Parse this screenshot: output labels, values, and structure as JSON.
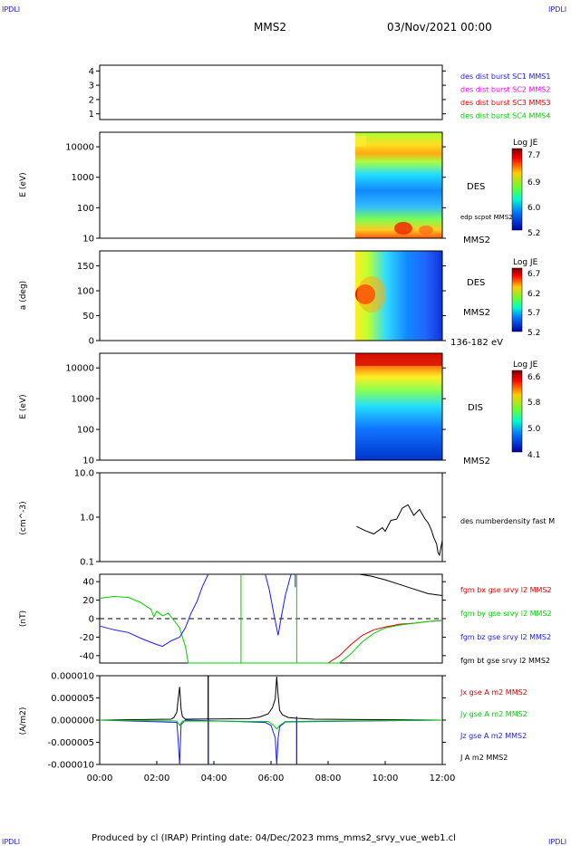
{
  "header": {
    "corner_tl": "IPDLI",
    "corner_tr": "IPDLI",
    "corner_bl": "IPDLI",
    "corner_br": "IPDLI",
    "spacecraft": "MMS2",
    "datetime": "03/Nov/2021 00:00"
  },
  "footer": {
    "text": "Produced by cl (IRAP)   Printing date: 04/Dec/2023   mms_mms2_srvy_vue_web1.cl"
  },
  "colors": {
    "blue": "#1a1aff",
    "magenta": "#ff00ff",
    "red": "#e00000",
    "green": "#00d000",
    "black": "#000000"
  },
  "chart_data": [
    {
      "type": "line",
      "id": "burst",
      "y_ticks": [
        "1",
        "2",
        "3",
        "4"
      ],
      "ylim": [
        0.6,
        4.4
      ],
      "legend": [
        {
          "text": "des dist burst SC1 MMS1",
          "color": "#1a1aff"
        },
        {
          "text": "des dist burst SC2 MMS2",
          "color": "#ff00ff"
        },
        {
          "text": "des dist burst SC3 MMS3",
          "color": "#e00000"
        },
        {
          "text": "des dist burst SC4 MMS4",
          "color": "#00d000"
        }
      ]
    },
    {
      "type": "heatmap",
      "id": "des-energy",
      "ylabel": "E (eV)",
      "y_log": true,
      "ylim": [
        10,
        30000
      ],
      "y_ticks": [
        "10",
        "100",
        "1000",
        "10000"
      ],
      "data_start_hour": 9.0,
      "colorbar": {
        "title": "Log JE",
        "ticks": [
          "7.7",
          "6.9",
          "6.0",
          "5.2"
        ]
      },
      "right_labels": [
        "DES",
        "edp scpot MMS2",
        "MMS2"
      ]
    },
    {
      "type": "heatmap",
      "id": "des-pitch",
      "ylabel": "a (deg)",
      "ylim": [
        0,
        180
      ],
      "y_ticks": [
        "0",
        "50",
        "100",
        "150"
      ],
      "data_start_hour": 9.0,
      "colorbar": {
        "title": "Log JE",
        "ticks": [
          "6.7",
          "6.2",
          "5.7",
          "5.2"
        ]
      },
      "right_labels": [
        "DES",
        "MMS2",
        "136-182 eV"
      ]
    },
    {
      "type": "heatmap",
      "id": "dis-energy",
      "ylabel": "E (eV)",
      "y_log": true,
      "ylim": [
        10,
        30000
      ],
      "y_ticks": [
        "10",
        "100",
        "1000",
        "10000"
      ],
      "data_start_hour": 9.0,
      "colorbar": {
        "title": "Log JE",
        "ticks": [
          "6.6",
          "5.8",
          "5.0",
          "4.1"
        ]
      },
      "right_labels": [
        "DIS",
        "MMS2"
      ]
    },
    {
      "type": "line",
      "id": "density",
      "ylabel": "(cm^-3)",
      "y_log": true,
      "ylim": [
        0.1,
        10
      ],
      "y_ticks": [
        "0.1",
        "1.0",
        "10.0"
      ],
      "legend": [
        {
          "text": "des numberdensity fast M",
          "color": "#000000"
        }
      ],
      "series": [
        {
          "color": "#000000",
          "x": [
            9.0,
            9.3,
            9.6,
            9.9,
            10.0,
            10.2,
            10.4,
            10.6,
            10.8,
            11.0,
            11.2,
            11.4,
            11.5,
            11.6,
            11.7,
            11.8,
            11.85,
            11.9,
            12.0
          ],
          "y": [
            0.62,
            0.5,
            0.42,
            0.58,
            0.48,
            0.85,
            0.9,
            1.6,
            1.9,
            1.1,
            1.5,
            0.9,
            0.75,
            0.55,
            0.35,
            0.25,
            0.16,
            0.14,
            0.3
          ]
        }
      ]
    },
    {
      "type": "line",
      "id": "fgm",
      "ylabel": "(nT)",
      "ylim": [
        -48,
        48
      ],
      "y_ticks": [
        "-40",
        "-20",
        "0",
        "20",
        "40"
      ],
      "zero_line": true,
      "legend": [
        {
          "text": "fgm bx gse srvy l2 MMS2",
          "color": "#e00000"
        },
        {
          "text": "fgm by gse srvy l2 MMS2",
          "color": "#00d000"
        },
        {
          "text": "fgm bz gse srvy l2 MMS2",
          "color": "#1a1aff"
        },
        {
          "text": "fgm bt gse srvy l2 MMS2",
          "color": "#000000"
        }
      ],
      "series": [
        {
          "name": "fgm bx gse srvy l2 MMS2",
          "color": "#e00000",
          "x": [
            8.0,
            8.4,
            8.8,
            9.2,
            9.6,
            10.0,
            10.5,
            11.0,
            11.5,
            12.0
          ],
          "y": [
            -48,
            -40,
            -28,
            -18,
            -12,
            -9,
            -6,
            -5,
            -3,
            -2
          ]
        },
        {
          "name": "fgm by gse srvy l2 MMS2",
          "color": "#00d000",
          "x": [
            0.0,
            0.5,
            1.0,
            1.4,
            1.8,
            1.9,
            2.0,
            2.2,
            2.4,
            2.6,
            2.8,
            3.0,
            3.1,
            8.4,
            8.8,
            9.2,
            9.6,
            10.0,
            10.5,
            11.0,
            11.5,
            12.0
          ],
          "y": [
            22,
            24,
            23,
            18,
            10,
            2,
            8,
            3,
            6,
            -2,
            -10,
            -30,
            -48,
            -48,
            -38,
            -25,
            -16,
            -10,
            -7,
            -5,
            -3,
            -2
          ]
        },
        {
          "name": "fgm bz gse srvy l2 MMS2",
          "color": "#1a1aff",
          "x": [
            0.0,
            0.5,
            1.0,
            1.5,
            2.0,
            2.2,
            2.5,
            2.8,
            3.0,
            3.2,
            3.4,
            3.6,
            3.8
          ],
          "y": [
            -8,
            -12,
            -15,
            -22,
            -28,
            -30,
            -24,
            -20,
            -10,
            6,
            18,
            35,
            48
          ]
        },
        {
          "name": "fgm bz gse srvy l2 MMS2",
          "color": "#1a1aff",
          "x": [
            5.8,
            5.95,
            6.1,
            6.25,
            6.35,
            6.5,
            6.7
          ],
          "y": [
            48,
            30,
            5,
            -18,
            0,
            25,
            48
          ]
        },
        {
          "name": "fgm bt gse srvy l2 MMS2",
          "color": "#000000",
          "x": [
            9.1,
            9.5,
            10.0,
            10.5,
            11.0,
            11.5,
            12.0
          ],
          "y": [
            48,
            46,
            42,
            37,
            32,
            27,
            25
          ]
        }
      ]
    },
    {
      "type": "line",
      "id": "current",
      "ylabel": "(A/m2)",
      "ylim": [
        -1e-05,
        1e-05
      ],
      "y_ticks": [
        "-0.000010",
        "-0.000005",
        "0.000000",
        "0.000005",
        "0.000010"
      ],
      "legend": [
        {
          "text": "Jx gse A m2 MMS2",
          "color": "#e00000"
        },
        {
          "text": "Jy gse A m2 MMS2",
          "color": "#00d000"
        },
        {
          "text": "Jz gse A m2 MMS2",
          "color": "#1a1aff"
        },
        {
          "text": "J A m2 MMS2",
          "color": "#000000"
        }
      ],
      "series": [
        {
          "name": "J A m2 MMS2",
          "color": "#000000",
          "x": [
            0,
            2.5,
            2.6,
            2.7,
            2.75,
            2.8,
            2.85,
            2.9,
            3.0,
            5.2,
            5.6,
            5.9,
            6.05,
            6.15,
            6.2,
            6.25,
            6.3,
            6.4,
            6.6,
            6.9,
            7.5,
            12
          ],
          "y": [
            0,
            2e-07,
            6e-07,
            1.8e-06,
            4.8e-06,
            7.5e-06,
            2.5e-06,
            8e-07,
            2e-07,
            3e-07,
            7e-07,
            1.4e-06,
            2.8e-06,
            4.8e-06,
            9.8e-06,
            5.5e-06,
            2.2e-06,
            1.2e-06,
            6e-07,
            4e-07,
            2e-07,
            0
          ]
        },
        {
          "name": "Jz gse A m2 MMS2",
          "color": "#1a1aff",
          "x": [
            0,
            2.7,
            2.75,
            2.8,
            2.85,
            3.0,
            5.8,
            6.0,
            6.15,
            6.2,
            6.25,
            6.3,
            6.5,
            12
          ],
          "y": [
            0,
            -5e-07,
            -4.5e-06,
            -1e-05,
            -1e-06,
            0,
            -5e-07,
            -1.2e-06,
            -4e-06,
            -1e-05,
            -4e-06,
            -1.5e-06,
            -4e-07,
            0
          ]
        },
        {
          "name": "Jy gse A m2 MMS2",
          "color": "#00d000",
          "x": [
            0,
            2.7,
            2.8,
            2.9,
            5.9,
            6.1,
            6.2,
            6.3,
            6.5,
            12
          ],
          "y": [
            0,
            -2e-07,
            -1.2e-06,
            -2e-07,
            -3e-07,
            -1.2e-06,
            -2e-06,
            -1.2e-06,
            -3e-07,
            0
          ]
        }
      ],
      "spikes": [
        {
          "x": 3.8,
          "ymin": -1e-05,
          "ymax": 1e-05,
          "color": "#000000"
        },
        {
          "x": 3.8,
          "ymin": -1e-05,
          "ymax": 0.0,
          "color": "#1a1aff"
        },
        {
          "x": 6.9,
          "ymin": -1e-05,
          "ymax": 8e-07,
          "color": "#1a1aff"
        }
      ],
      "x_ticks": [
        "00:00",
        "02:00",
        "04:00",
        "06:00",
        "08:00",
        "10:00",
        "12:00"
      ],
      "xlim_hours": [
        0,
        12
      ]
    }
  ]
}
